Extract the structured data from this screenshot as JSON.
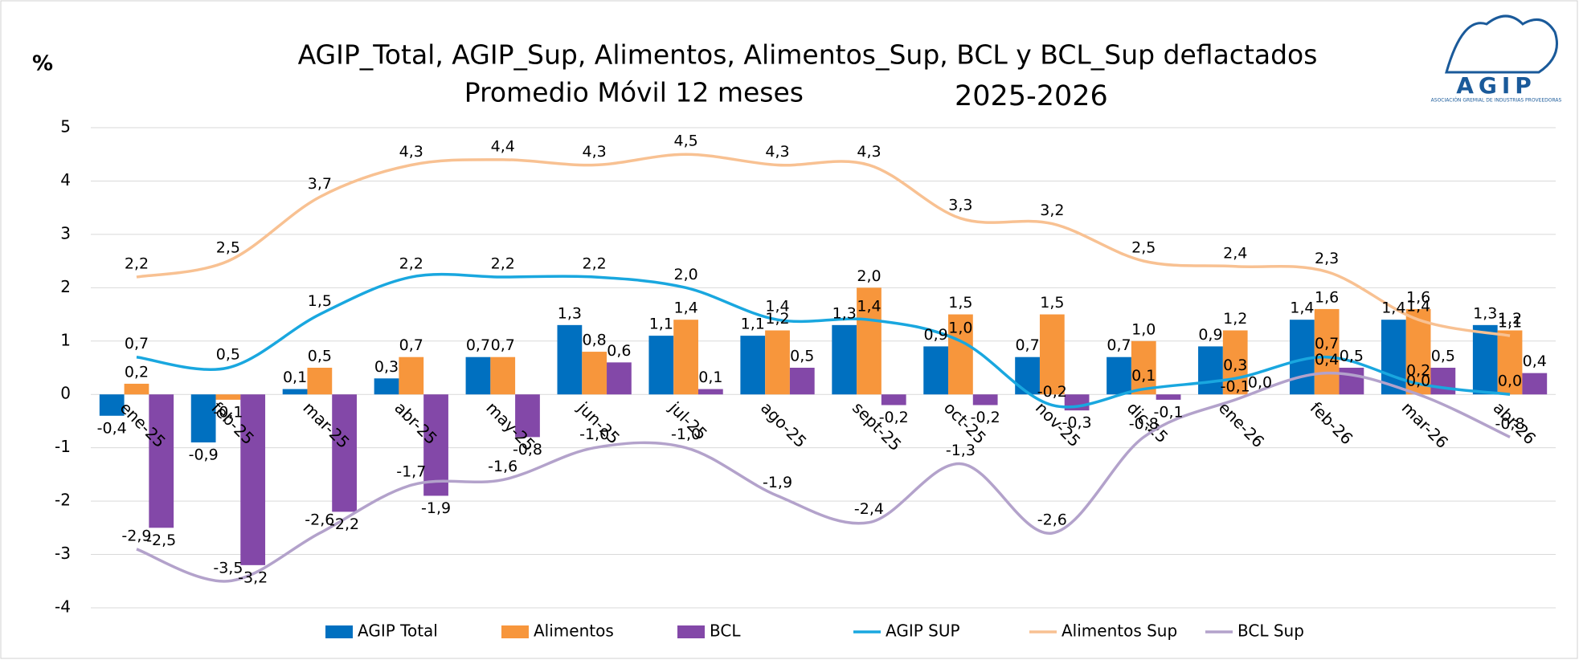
{
  "chart_data": {
    "type": "bar",
    "title": "AGIP_Total, AGIP_Sup, Alimentos, Alimentos_Sup, BCL y BCL_Sup deflactados",
    "subtitle": "Promedio Móvil 12 meses",
    "period": "2025-2026",
    "y_label": "%",
    "logo": {
      "name": "AGIP",
      "tagline": "ASOCIACIÓN GREMIAL DE INDUSTRIAS PROVEEDORAS"
    },
    "categories": [
      "ene-25",
      "feb-25",
      "mar-25",
      "abr-25",
      "may-25",
      "jun-25",
      "jul-25",
      "ago-25",
      "sept-25",
      "oct-25",
      "nov-25",
      "dic-25",
      "ene-26",
      "feb-26",
      "mar-26",
      "abr-26"
    ],
    "ylim": [
      -4,
      5
    ],
    "yticks": [
      -4,
      -3,
      -2,
      -1,
      0,
      1,
      2,
      3,
      4,
      5
    ],
    "grid": true,
    "legend": "bottom",
    "series": [
      {
        "name": "AGIP Total",
        "type": "bar",
        "color": "#0070c0",
        "values": [
          -0.4,
          -0.9,
          0.1,
          0.3,
          0.7,
          1.3,
          1.1,
          1.1,
          1.3,
          0.9,
          0.7,
          0.7,
          0.9,
          1.4,
          1.4,
          1.3
        ],
        "value_labels": [
          "-0,4",
          "-0,9",
          "0,1",
          "0,3",
          "0,7",
          "1,3",
          "1,1",
          "1,1",
          "1,3",
          "0,9",
          "0,7",
          "0,7",
          "0,9",
          "1,4",
          "1,4",
          "1,3"
        ]
      },
      {
        "name": "Alimentos",
        "type": "bar",
        "color": "#f7963c",
        "values": [
          0.2,
          -0.1,
          0.5,
          0.7,
          0.7,
          0.8,
          1.4,
          1.2,
          2.0,
          1.5,
          1.5,
          1.0,
          1.2,
          1.6,
          1.6,
          1.2
        ],
        "value_labels": [
          "0,2",
          "-0,1",
          "0,5",
          "0,7",
          "0,7",
          "0,8",
          "1,4",
          "1,2",
          "2,0",
          "1,5",
          "1,5",
          "1,0",
          "1,2",
          "1,6",
          "1,6",
          "1,2"
        ]
      },
      {
        "name": "BCL",
        "type": "bar",
        "color": "#8348a8",
        "values": [
          -2.5,
          -3.2,
          -2.2,
          -1.9,
          -0.8,
          0.6,
          0.1,
          0.5,
          -0.2,
          -0.2,
          -0.3,
          -0.1,
          0.0,
          0.5,
          0.5,
          0.4
        ],
        "value_labels": [
          "-2,5",
          "-3,2",
          "-2,2",
          "-1,9",
          "-0,8",
          "0,6",
          "0,1",
          "0,5",
          "-0,2",
          "-0,2",
          "-0,3",
          "-0,1",
          "0,0",
          "0,5",
          "0,5",
          "0,4"
        ]
      },
      {
        "name": "AGIP SUP",
        "type": "line",
        "color": "#19a7df",
        "values": [
          0.7,
          0.5,
          1.5,
          2.2,
          2.2,
          2.2,
          2.0,
          1.4,
          1.4,
          1.0,
          -0.2,
          0.1,
          0.3,
          0.7,
          0.2,
          0.0
        ],
        "value_labels": [
          "0,7",
          "0,5",
          "1,5",
          "2,2",
          "2,2",
          "2,2",
          "2,0",
          "1,4",
          "1,4",
          "1,0",
          "-0,2",
          "0,1",
          "0,3",
          "0,7",
          "0,2",
          "0,0"
        ]
      },
      {
        "name": "Alimentos Sup",
        "type": "line",
        "color": "#f8c192",
        "values": [
          2.2,
          2.5,
          3.7,
          4.3,
          4.4,
          4.3,
          4.5,
          4.3,
          4.3,
          3.3,
          3.2,
          2.5,
          2.4,
          2.3,
          1.4,
          1.1
        ],
        "value_labels": [
          "2,2",
          "2,5",
          "3,7",
          "4,3",
          "4,4",
          "4,3",
          "4,5",
          "4,3",
          "4,3",
          "3,3",
          "3,2",
          "2,5",
          "2,4",
          "2,3",
          "1,4",
          "1,1"
        ]
      },
      {
        "name": "BCL Sup",
        "type": "line",
        "color": "#b3a2cb",
        "values": [
          -2.9,
          -3.5,
          -2.6,
          -1.7,
          -1.6,
          -1.0,
          -1.0,
          -1.9,
          -2.4,
          -1.3,
          -2.6,
          -0.8,
          -0.1,
          0.4,
          0.0,
          -0.8
        ],
        "value_labels": [
          "-2,9",
          "-3,5",
          "-2,6",
          "-1,7",
          "-1,6",
          "-1,0",
          "-1,0",
          "-1,9",
          "-2,4",
          "-1,3",
          "-2,6",
          "-0,8",
          "-0,1",
          "0,4",
          "0,0",
          "-0,8"
        ]
      }
    ]
  }
}
